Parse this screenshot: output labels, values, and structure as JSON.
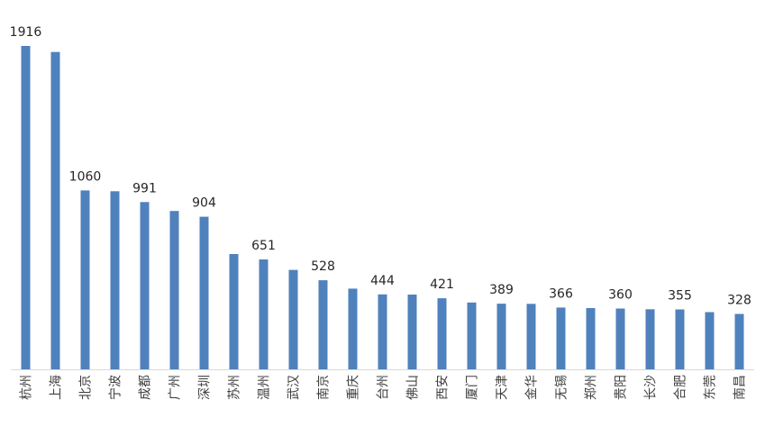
{
  "chart_data": {
    "type": "bar",
    "title": "",
    "xlabel": "",
    "ylabel": "",
    "ylim": [
      0,
      1916
    ],
    "grid": false,
    "legend": "none",
    "bar_color": "#4f81bd",
    "categories": [
      "杭州",
      "上海",
      "北京",
      "宁波",
      "成都",
      "广州",
      "深圳",
      "苏州",
      "温州",
      "武汉",
      "南京",
      "重庆",
      "台州",
      "佛山",
      "西安",
      "厦门",
      "天津",
      "金华",
      "无锡",
      "郑州",
      "贵阳",
      "长沙",
      "合肥",
      "东莞",
      "南昌"
    ],
    "values": [
      1916,
      1880,
      1060,
      1055,
      991,
      938,
      904,
      683,
      651,
      589,
      528,
      478,
      444,
      443,
      421,
      396,
      389,
      388,
      366,
      363,
      360,
      356,
      355,
      339,
      328
    ],
    "data_labels": [
      {
        "index": 0,
        "text": "1916"
      },
      {
        "index": 2,
        "text": "1060"
      },
      {
        "index": 4,
        "text": "991"
      },
      {
        "index": 6,
        "text": "904"
      },
      {
        "index": 8,
        "text": "651"
      },
      {
        "index": 10,
        "text": "528"
      },
      {
        "index": 12,
        "text": "444"
      },
      {
        "index": 14,
        "text": "421"
      },
      {
        "index": 16,
        "text": "389"
      },
      {
        "index": 18,
        "text": "366"
      },
      {
        "index": 20,
        "text": "360"
      },
      {
        "index": 22,
        "text": "355"
      },
      {
        "index": 24,
        "text": "328"
      }
    ]
  }
}
